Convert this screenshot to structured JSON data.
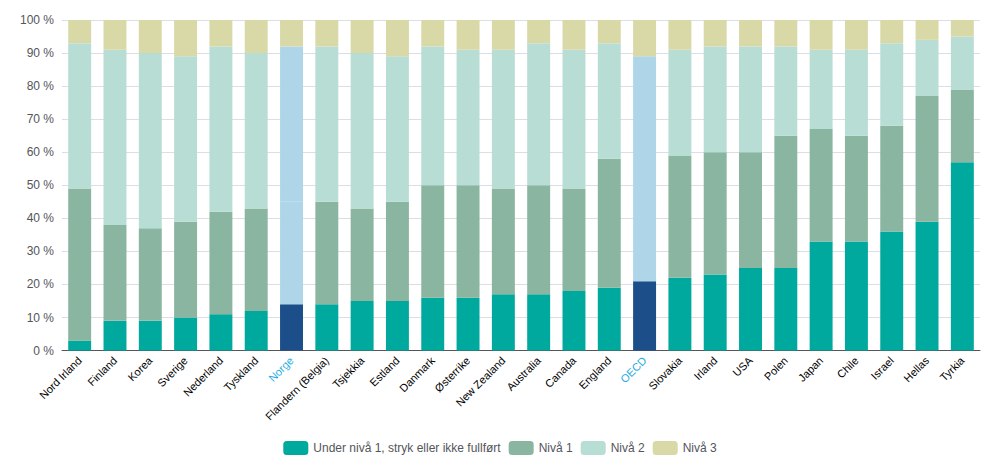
{
  "chart_data": {
    "type": "bar",
    "stacked": true,
    "grid": true,
    "legend": "bottom",
    "categories": [
      "Nord Irland",
      "Finland",
      "Korea",
      "Sverige",
      "Nederland",
      "Tyskland",
      "Norge",
      "Flandern (Belgia)",
      "Tsjekkia",
      "Estland",
      "Danmark",
      "Østerrike",
      "New Zealand",
      "Australia",
      "Canada",
      "England",
      "OECD",
      "Slovakia",
      "Irland",
      "USA",
      "Polen",
      "Japan",
      "Chile",
      "Israel",
      "Hellas",
      "Tyrkia"
    ],
    "ylim": [
      0,
      100
    ],
    "yticks": [
      {
        "value": 0,
        "label": "0 %"
      },
      {
        "value": 10,
        "label": "10 %"
      },
      {
        "value": 20,
        "label": "20 %"
      },
      {
        "value": 30,
        "label": "30 %"
      },
      {
        "value": 40,
        "label": "40 %"
      },
      {
        "value": 50,
        "label": "50 %"
      },
      {
        "value": 60,
        "label": "60 %"
      },
      {
        "value": 70,
        "label": "70 %"
      },
      {
        "value": 80,
        "label": "80 %"
      },
      {
        "value": 90,
        "label": "90 %"
      },
      {
        "value": 100,
        "label": "100 %"
      }
    ],
    "series": [
      {
        "name": "Under nivå 1, stryk eller ikke fullført",
        "color": "#00a99d",
        "colors": [
          "#00a99d",
          "#00a99d",
          "#00a99d",
          "#00a99d",
          "#00a99d",
          "#00a99d",
          "#1c4f8a",
          "#00a99d",
          "#00a99d",
          "#00a99d",
          "#00a99d",
          "#00a99d",
          "#00a99d",
          "#00a99d",
          "#00a99d",
          "#00a99d",
          "#1c4f8a",
          "#00a99d",
          "#00a99d",
          "#00a99d",
          "#00a99d",
          "#00a99d",
          "#00a99d",
          "#00a99d",
          "#00a99d",
          "#00a99d"
        ],
        "values": [
          3,
          9,
          9,
          10,
          11,
          12,
          14,
          14,
          15,
          15,
          16,
          16,
          17,
          17,
          18,
          19,
          21,
          22,
          23,
          25,
          25,
          33,
          33,
          36,
          39,
          57
        ]
      },
      {
        "name": "Nivå 1",
        "color": "#8ab5a0",
        "colors": [
          "#8ab5a0",
          "#8ab5a0",
          "#8ab5a0",
          "#8ab5a0",
          "#8ab5a0",
          "#8ab5a0",
          "#aed6e8",
          "#8ab5a0",
          "#8ab5a0",
          "#8ab5a0",
          "#8ab5a0",
          "#8ab5a0",
          "#8ab5a0",
          "#8ab5a0",
          "#8ab5a0",
          "#8ab5a0",
          "#aed6e8",
          "#8ab5a0",
          "#8ab5a0",
          "#8ab5a0",
          "#8ab5a0",
          "#8ab5a0",
          "#8ab5a0",
          "#8ab5a0",
          "#8ab5a0",
          "#8ab5a0"
        ],
        "values": [
          46,
          29,
          28,
          29,
          31,
          31,
          31,
          31,
          28,
          30,
          34,
          34,
          32,
          33,
          31,
          39,
          33,
          37,
          37,
          35,
          40,
          34,
          32,
          32,
          38,
          22
        ]
      },
      {
        "name": "Nivå 2",
        "color": "#b8ddd5",
        "colors": [
          "#b8ddd5",
          "#b8ddd5",
          "#b8ddd5",
          "#b8ddd5",
          "#b8ddd5",
          "#b8ddd5",
          "#aed6e8",
          "#b8ddd5",
          "#b8ddd5",
          "#b8ddd5",
          "#b8ddd5",
          "#b8ddd5",
          "#b8ddd5",
          "#b8ddd5",
          "#b8ddd5",
          "#b8ddd5",
          "#aed6e8",
          "#b8ddd5",
          "#b8ddd5",
          "#b8ddd5",
          "#b8ddd5",
          "#b8ddd5",
          "#b8ddd5",
          "#b8ddd5",
          "#b8ddd5",
          "#b8ddd5"
        ],
        "values": [
          44,
          53,
          53,
          50,
          50,
          47,
          47,
          47,
          47,
          44,
          42,
          41,
          42,
          43,
          42,
          35,
          35,
          32,
          32,
          32,
          27,
          24,
          26,
          25,
          17,
          16
        ]
      },
      {
        "name": "Nivå 3",
        "color": "#d9d9a8",
        "colors": [
          "#d9d9a8",
          "#d9d9a8",
          "#d9d9a8",
          "#d9d9a8",
          "#d9d9a8",
          "#d9d9a8",
          "#d9d9a8",
          "#d9d9a8",
          "#d9d9a8",
          "#d9d9a8",
          "#d9d9a8",
          "#d9d9a8",
          "#d9d9a8",
          "#d9d9a8",
          "#d9d9a8",
          "#d9d9a8",
          "#d9d9a8",
          "#d9d9a8",
          "#d9d9a8",
          "#d9d9a8",
          "#d9d9a8",
          "#d9d9a8",
          "#d9d9a8",
          "#d9d9a8",
          "#d9d9a8",
          "#d9d9a8"
        ],
        "values": [
          7,
          9,
          10,
          11,
          8,
          10,
          8,
          8,
          10,
          11,
          8,
          9,
          9,
          7,
          9,
          7,
          11,
          9,
          8,
          8,
          8,
          9,
          9,
          7,
          6,
          5
        ]
      }
    ]
  }
}
